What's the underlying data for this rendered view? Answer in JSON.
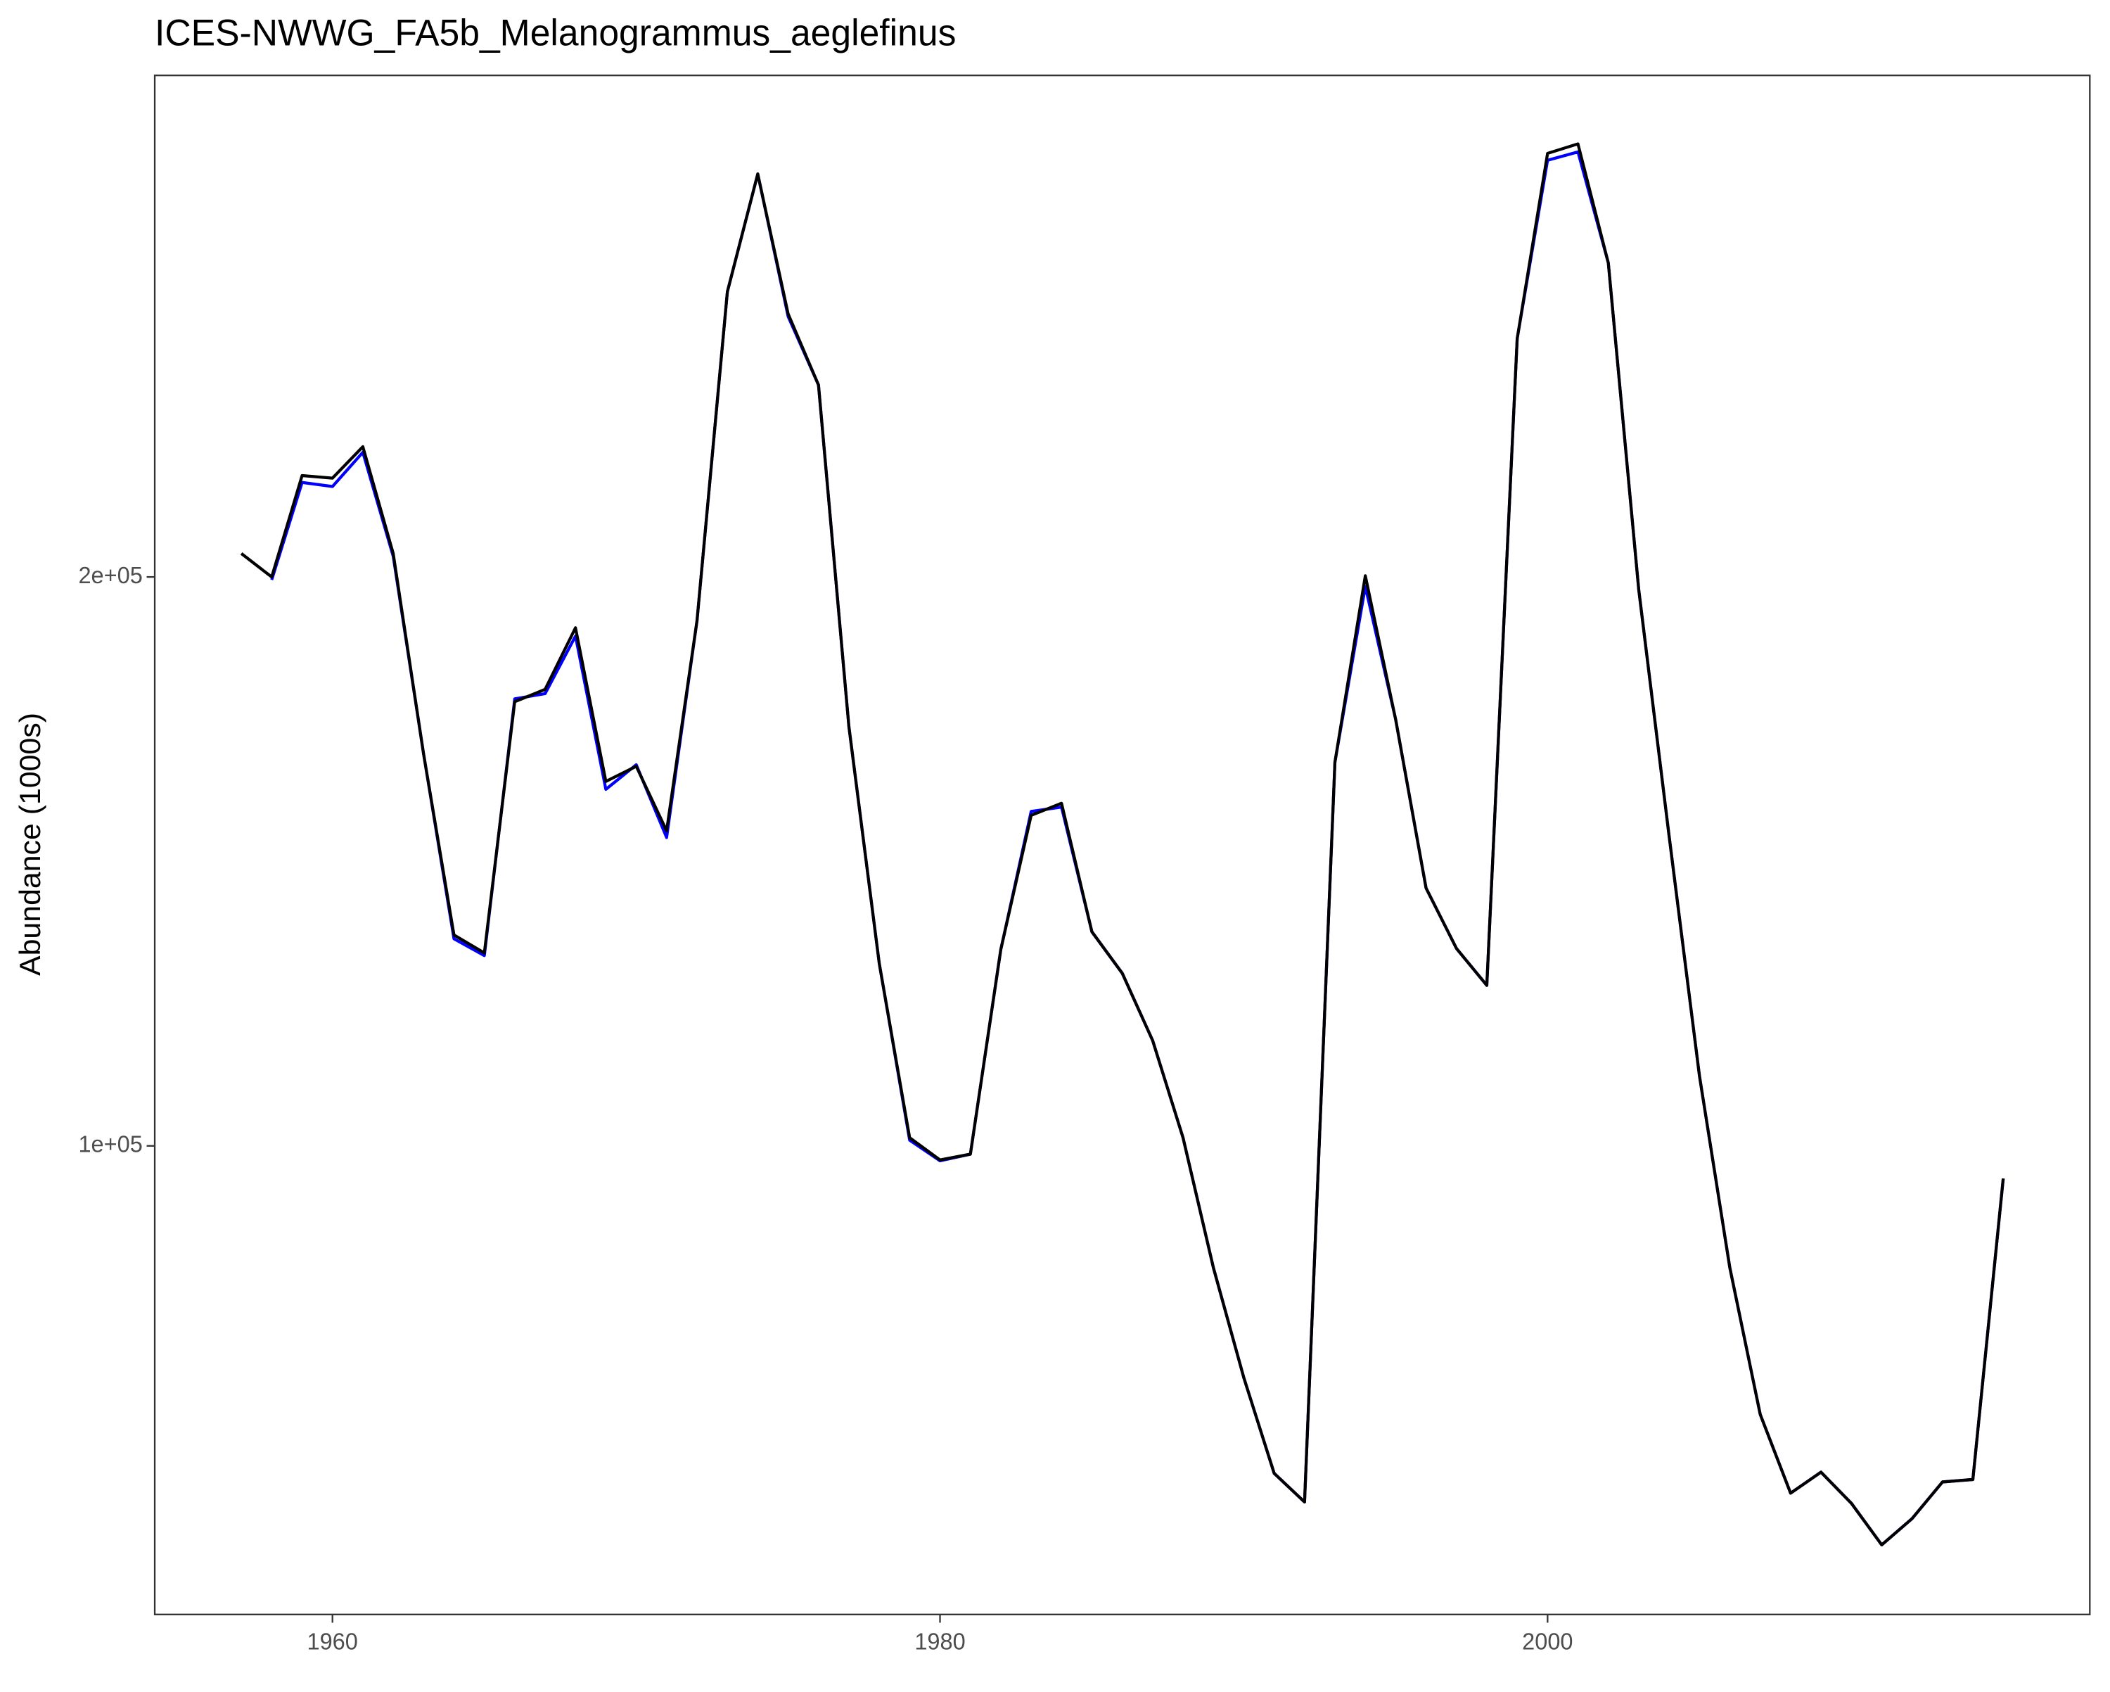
{
  "chart_data": {
    "type": "line",
    "title": "ICES-NWWG_FA5b_Melanogrammus_aeglefinus",
    "y_label": "Abundance (1000s)",
    "y_scale": "log",
    "grid": false,
    "x": [
      1957,
      1958,
      1959,
      1960,
      1961,
      1962,
      1963,
      1964,
      1965,
      1966,
      1967,
      1968,
      1969,
      1970,
      1971,
      1972,
      1973,
      1974,
      1975,
      1976,
      1977,
      1978,
      1979,
      1980,
      1981,
      1982,
      1983,
      1984,
      1985,
      1986,
      1987,
      1988,
      1989,
      1990,
      1991,
      1992,
      1993,
      1994,
      1995,
      1996,
      1997,
      1998,
      1999,
      2000,
      2001,
      2002,
      2003,
      2004,
      2005,
      2006,
      2007,
      2008,
      2009,
      2010,
      2011,
      2012,
      2013,
      2014,
      2015
    ],
    "series": [
      {
        "color": "#0000ff",
        "values": [
          null,
          199300,
          224400,
          223300,
          232800,
          205100,
          161200,
          128700,
          126100,
          172400,
          173500,
          186100,
          154400,
          159100,
          145600,
          189600,
          283100,
          326800,
          274700,
          252700,
          166700,
          124900,
          100700,
          98200,
          99000,
          127000,
          150300,
          151100,
          129800,
          123400,
          113700,
          101000,
          86200,
          75400,
          67100,
          64800,
          159600,
          197700,
          168100,
          136900,
          127200,
          121600,
          267400,
          332300,
          335700,
          293200,
          197000,
          145900,
          108900,
          86200,
          72100,
          65500,
          67200,
          64700,
          61500,
          63500,
          66400,
          66600,
          96100
        ]
      },
      {
        "color": "#000000",
        "values": [
          205800,
          200000,
          226300,
          225600,
          234400,
          205800,
          161200,
          129300,
          126500,
          171800,
          174400,
          188000,
          155900,
          158800,
          146800,
          189600,
          283100,
          326800,
          275600,
          252700,
          166700,
          124900,
          101000,
          98300,
          99000,
          127000,
          149600,
          151800,
          129800,
          123400,
          113700,
          101000,
          86200,
          75400,
          67100,
          64800,
          159600,
          200300,
          168100,
          136900,
          127200,
          121600,
          267400,
          335100,
          339000,
          293200,
          197000,
          145900,
          108900,
          86200,
          72100,
          65500,
          67200,
          64700,
          61500,
          63500,
          66400,
          66600,
          96100
        ]
      }
    ],
    "xlim": [
      1954.15,
      2017.85
    ],
    "xticks": [
      1960,
      1980,
      2000
    ],
    "ylim": [
      56500,
      368500
    ],
    "yticks": [
      {
        "value": 100000,
        "label": "1e+05"
      },
      {
        "value": 200000,
        "label": "2e+05"
      }
    ]
  }
}
